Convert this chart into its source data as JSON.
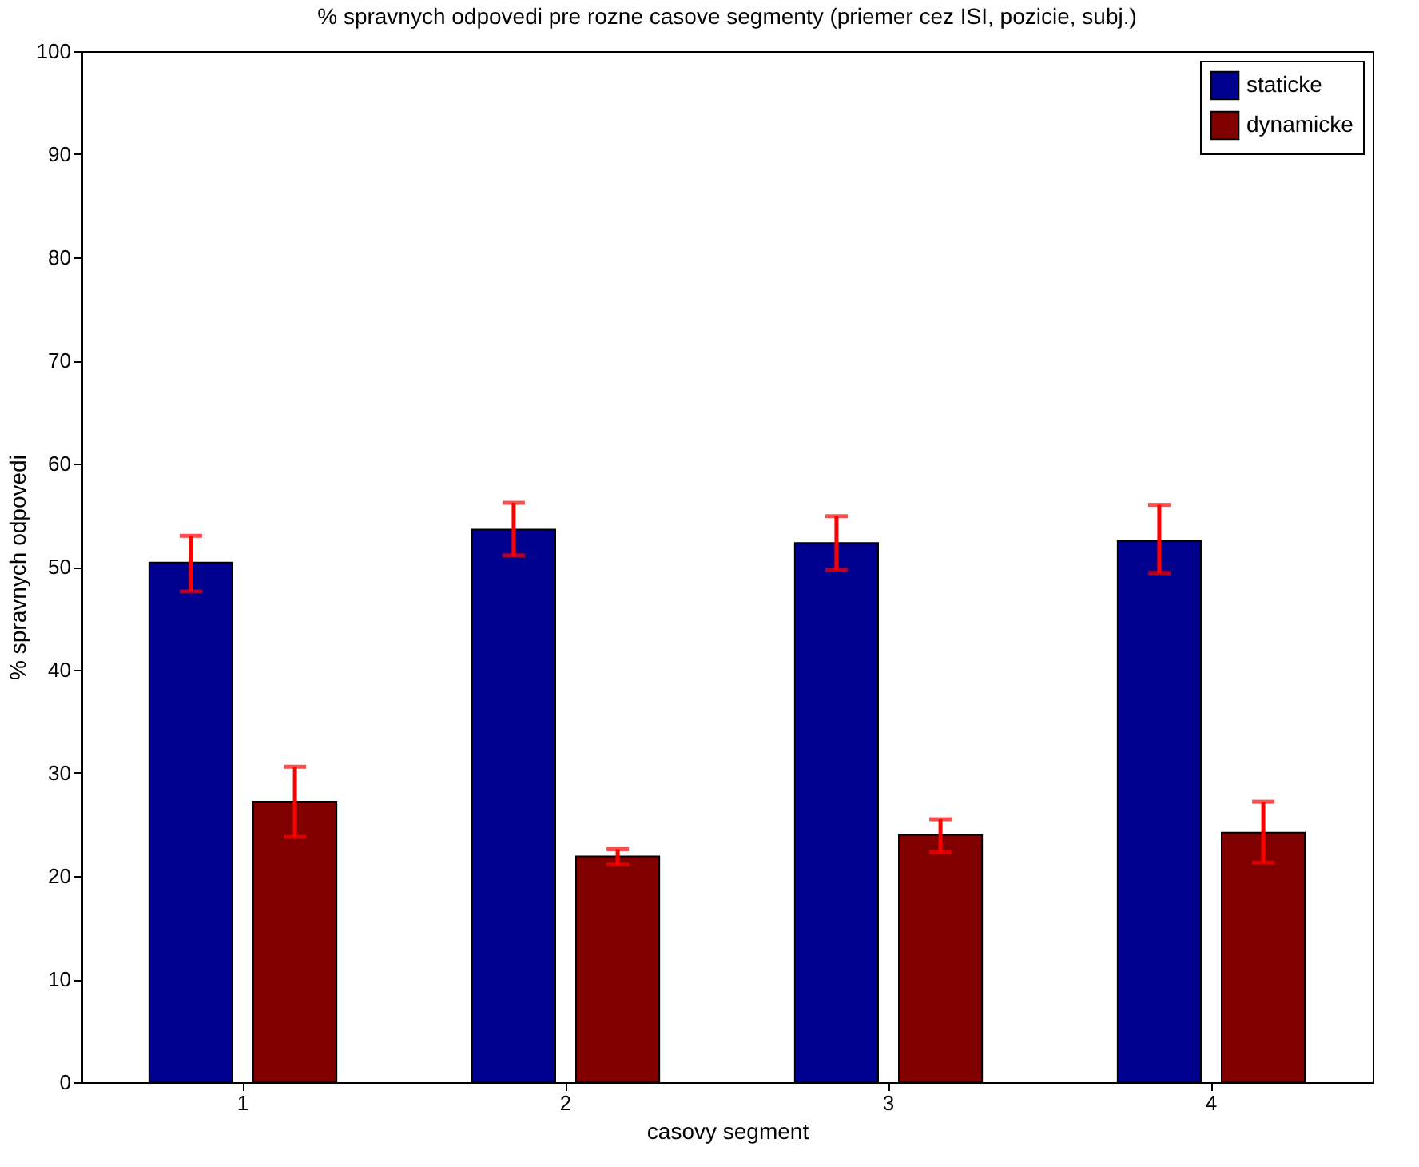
{
  "chart_data": {
    "type": "bar",
    "title": "% spravnych odpovedi pre rozne casove segmenty (priemer cez ISI, pozicie, subj.)",
    "xlabel": "casovy segment",
    "ylabel": "% spravnych odpovedi",
    "categories": [
      "1",
      "2",
      "3",
      "4"
    ],
    "series": [
      {
        "name": "staticke",
        "color": "#00008f",
        "values": [
          50.4,
          53.6,
          52.3,
          52.5
        ],
        "errors": [
          [
            47.6,
            53.0
          ],
          [
            51.1,
            56.2
          ],
          [
            49.7,
            54.9
          ],
          [
            49.4,
            56.0
          ]
        ]
      },
      {
        "name": "dynamicke",
        "color": "#800000",
        "values": [
          27.2,
          21.9,
          24.0,
          24.2
        ],
        "errors": [
          [
            23.8,
            30.6
          ],
          [
            21.1,
            22.6
          ],
          [
            22.3,
            25.5
          ],
          [
            21.3,
            27.2
          ]
        ]
      }
    ],
    "ylim": [
      0,
      100
    ],
    "yticks": [
      0,
      10,
      20,
      30,
      40,
      50,
      60,
      70,
      80,
      90,
      100
    ],
    "grid": false,
    "legend": "top right"
  }
}
